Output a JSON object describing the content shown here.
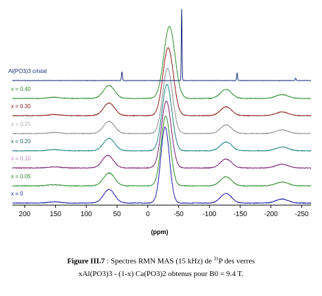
{
  "chart_data": {
    "type": "line",
    "xlabel": "(ppm)",
    "ylabel": "",
    "xlim": [
      220,
      -265
    ],
    "x_ticks": [
      200,
      150,
      100,
      50,
      0,
      -50,
      -100,
      -150,
      -200,
      -250
    ],
    "x_tick_labels": [
      "200",
      "150",
      "100",
      "50",
      "0",
      "-50",
      "-100",
      "-150",
      "-200",
      "-250"
    ],
    "series": [
      {
        "name": "Al(PO3)3 cristal",
        "color": "#1a2a7a",
        "peaks": [
          {
            "ppm": -55,
            "height": 1.0,
            "width": 0.6
          },
          {
            "ppm": 42,
            "height": 0.12,
            "width": 0.8
          },
          {
            "ppm": -145,
            "height": 0.1,
            "width": 0.8
          },
          {
            "ppm": -240,
            "height": 0.03,
            "width": 0.8
          }
        ]
      },
      {
        "name": "x = 0.40",
        "color": "#2e8b2e",
        "peaks": [
          {
            "ppm": -35,
            "height": 0.95,
            "width": 9
          },
          {
            "ppm": 63,
            "height": 0.17,
            "width": 9
          },
          {
            "ppm": -127,
            "height": 0.12,
            "width": 9
          },
          {
            "ppm": -218,
            "height": 0.05,
            "width": 10
          },
          {
            "ppm": 152,
            "height": 0.015,
            "width": 10
          }
        ]
      },
      {
        "name": "x = 0.30",
        "color": "#8b1a1a",
        "peaks": [
          {
            "ppm": -33,
            "height": 0.92,
            "width": 8.5
          },
          {
            "ppm": 63,
            "height": 0.17,
            "width": 9
          },
          {
            "ppm": -127,
            "height": 0.12,
            "width": 9
          },
          {
            "ppm": -218,
            "height": 0.05,
            "width": 10
          },
          {
            "ppm": 152,
            "height": 0.015,
            "width": 10
          }
        ]
      },
      {
        "name": "x = 0.25",
        "color": "#8c8c8c",
        "peaks": [
          {
            "ppm": -32,
            "height": 0.9,
            "width": 8
          },
          {
            "ppm": 63,
            "height": 0.17,
            "width": 9
          },
          {
            "ppm": -127,
            "height": 0.12,
            "width": 9
          },
          {
            "ppm": -218,
            "height": 0.05,
            "width": 10
          },
          {
            "ppm": 152,
            "height": 0.015,
            "width": 10
          }
        ]
      },
      {
        "name": "x = 0.20",
        "color": "#1a8080",
        "peaks": [
          {
            "ppm": -31,
            "height": 0.9,
            "width": 8
          },
          {
            "ppm": 63,
            "height": 0.17,
            "width": 9
          },
          {
            "ppm": -127,
            "height": 0.12,
            "width": 9
          },
          {
            "ppm": -218,
            "height": 0.05,
            "width": 10
          },
          {
            "ppm": 152,
            "height": 0.015,
            "width": 10
          }
        ]
      },
      {
        "name": "x = 0.10",
        "color": "#7a1a6e",
        "peaks": [
          {
            "ppm": -30,
            "height": 0.9,
            "width": 8
          },
          {
            "ppm": 65,
            "height": 0.17,
            "width": 9
          },
          {
            "ppm": -127,
            "height": 0.12,
            "width": 9
          },
          {
            "ppm": -218,
            "height": 0.05,
            "width": 10
          },
          {
            "ppm": 152,
            "height": 0.015,
            "width": 10
          }
        ]
      },
      {
        "name": "x = 0.05",
        "color": "#2e8b2e",
        "peaks": [
          {
            "ppm": -29,
            "height": 0.92,
            "width": 7.5
          },
          {
            "ppm": 63,
            "height": 0.17,
            "width": 9
          },
          {
            "ppm": -127,
            "height": 0.12,
            "width": 9
          },
          {
            "ppm": -218,
            "height": 0.05,
            "width": 10
          },
          {
            "ppm": 152,
            "height": 0.015,
            "width": 10
          }
        ]
      },
      {
        "name": "x = 0",
        "color": "#1a1aa8",
        "peaks": [
          {
            "ppm": -28,
            "height": 0.95,
            "width": 7
          },
          {
            "ppm": 63,
            "height": 0.17,
            "width": 9
          },
          {
            "ppm": -127,
            "height": 0.12,
            "width": 9
          },
          {
            "ppm": -218,
            "height": 0.05,
            "width": 10
          },
          {
            "ppm": 152,
            "height": 0.015,
            "width": 10
          }
        ]
      }
    ],
    "label_colors": [
      "#1a2a7a",
      "#2e8b2e",
      "#8b1a1a",
      "#b0b0b0",
      "#1a6060",
      "#c080c0",
      "#2e8b2e",
      "#1a1aa8"
    ]
  },
  "caption": {
    "figure_label": "Figure III.7",
    "line1_text": " : Spectres RMN MAS (15 kHz) de ",
    "isotope_mass": "31",
    "isotope_symbol": "P des verres",
    "line2_text": "xAl(PO3)3 - (1-x) Ca(PO3)2 obtenus pour B0 = 9.4 T."
  }
}
